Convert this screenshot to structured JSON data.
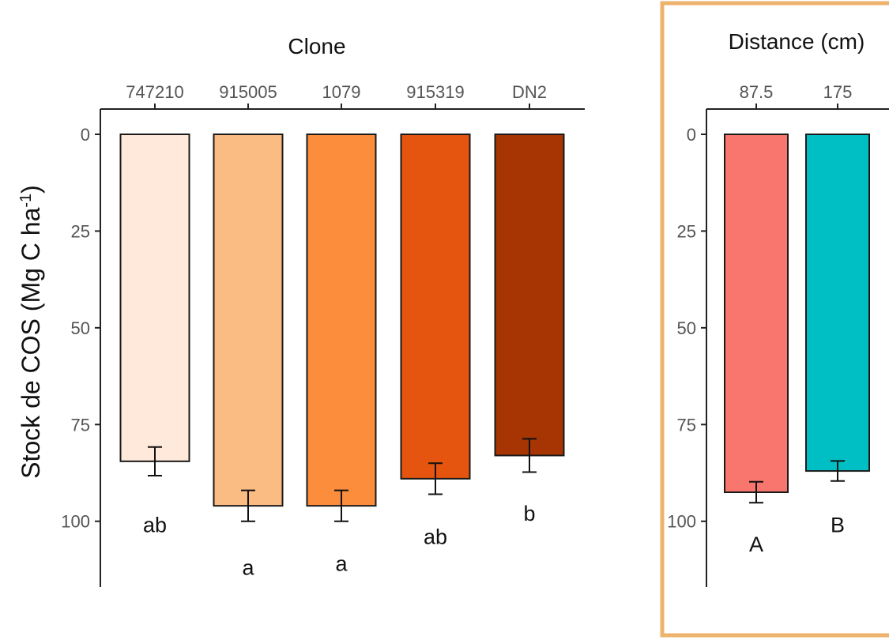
{
  "y_axis_label": {
    "base": "Stock de COS (Mg C ha",
    "superscript": "-1",
    "close": ")"
  },
  "colors": {
    "frame": "#EDB26B",
    "axis": "#222222",
    "bar_outline": "#1a1a1a"
  },
  "chart_data": [
    {
      "type": "bar",
      "title": "Clone",
      "x_axis_position": "top",
      "y_inverted": true,
      "ylim": [
        0,
        117
      ],
      "yticks": [
        0,
        25,
        50,
        75,
        100
      ],
      "categories": [
        "747210",
        "915005",
        "1079",
        "915319",
        "DN2"
      ],
      "values": [
        84.5,
        96,
        96,
        89,
        83
      ],
      "error": [
        3.7,
        4,
        4,
        4,
        4.3
      ],
      "letters": [
        "ab",
        "a",
        "a",
        "ab",
        "b"
      ],
      "letter_y": [
        101,
        112,
        111,
        104,
        98
      ],
      "colors": [
        "#FEE9DA",
        "#FBBC84",
        "#FC8D3C",
        "#E5550F",
        "#A63503"
      ]
    },
    {
      "type": "bar",
      "title": "Distance (cm)",
      "x_axis_position": "top",
      "y_inverted": true,
      "ylim": [
        0,
        117
      ],
      "yticks": [
        0,
        25,
        50,
        75,
        100
      ],
      "categories": [
        "87.5",
        "175"
      ],
      "values": [
        92.5,
        87
      ],
      "error": [
        2.7,
        2.6
      ],
      "letters": [
        "A",
        "B"
      ],
      "letter_y": [
        106,
        101
      ],
      "colors": [
        "#F8766D",
        "#00BFC4"
      ]
    }
  ]
}
